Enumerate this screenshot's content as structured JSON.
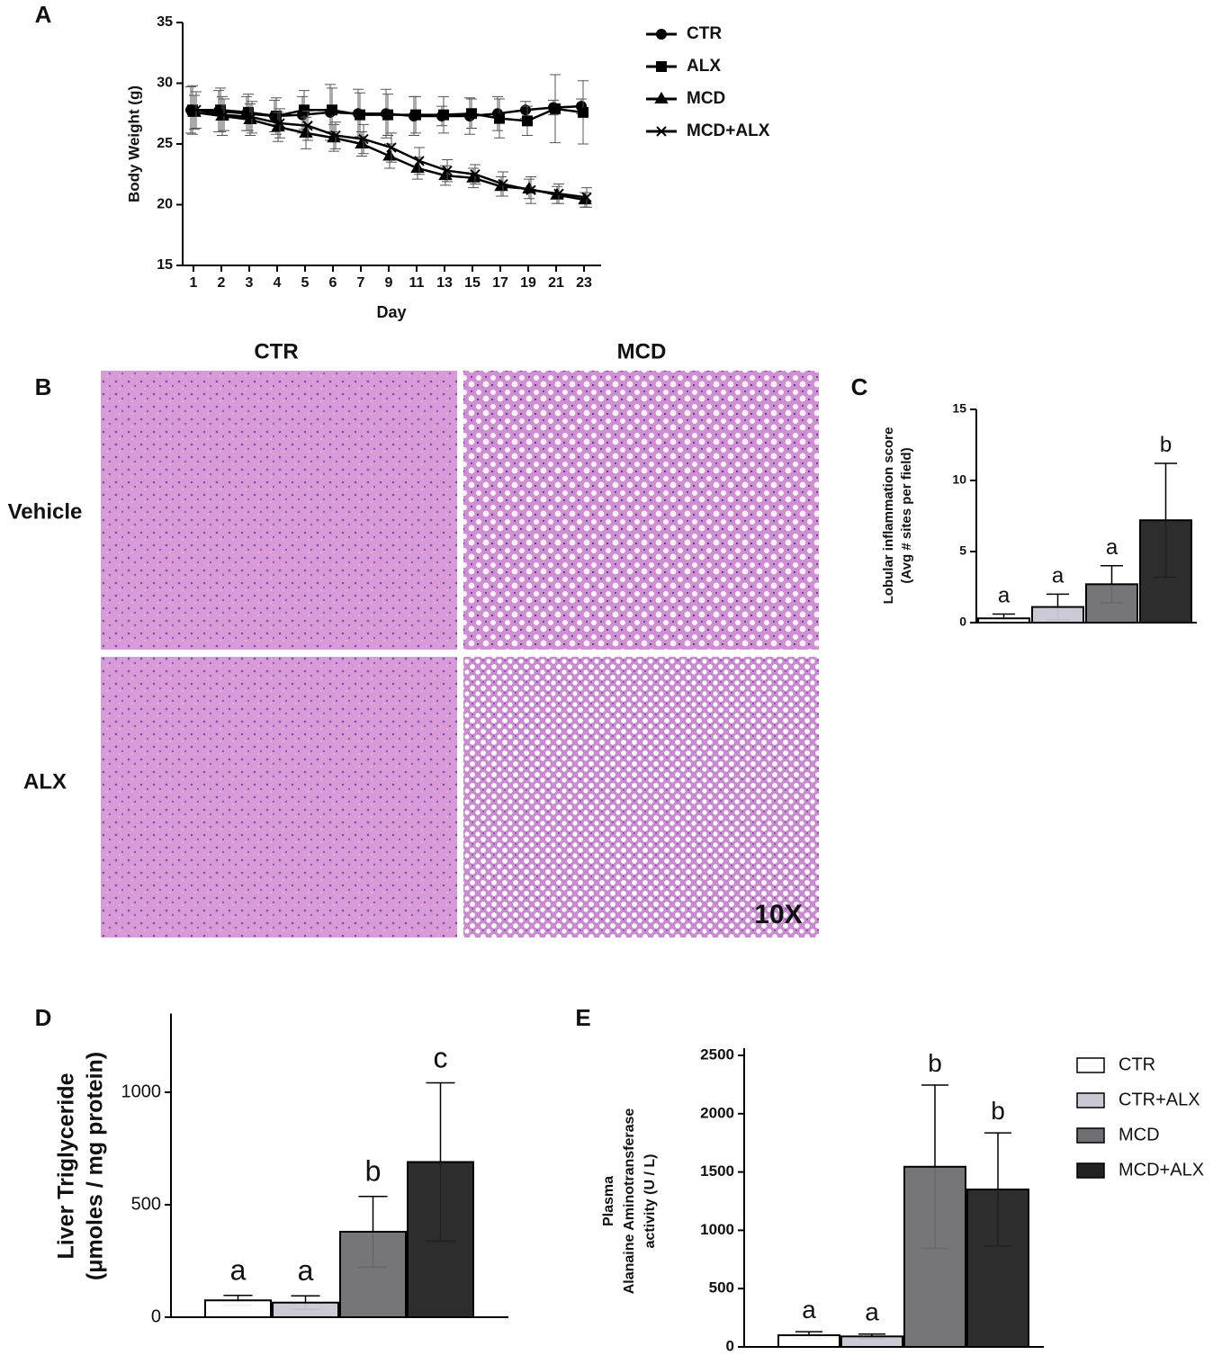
{
  "chart_data": [
    {
      "type": "line",
      "panel": "A",
      "xlabel": "Day",
      "ylabel": [
        "Body Weight (g)"
      ],
      "categories": [
        "1",
        "2",
        "3",
        "4",
        "5",
        "6",
        "7",
        "9",
        "11",
        "13",
        "15",
        "17",
        "19",
        "21",
        "23"
      ],
      "ylim": [
        15,
        35
      ],
      "yticks": [
        15,
        20,
        25,
        30,
        35
      ],
      "series": [
        {
          "name": "CTR",
          "color": "#000000",
          "marker": "circle",
          "values": [
            27.8,
            27.7,
            27.5,
            27.3,
            27.4,
            27.6,
            27.5,
            27.5,
            27.3,
            27.3,
            27.3,
            27.5,
            27.8,
            28.0,
            28.1
          ],
          "errors": [
            1.9,
            1.7,
            1.4,
            1.3,
            1.5,
            2.3,
            2.0,
            2.0,
            1.6,
            0.8,
            1.5,
            1.4,
            0.7,
            0.6,
            0.6
          ]
        },
        {
          "name": "ALX",
          "color": "#000000",
          "marker": "square",
          "values": [
            27.8,
            27.8,
            27.6,
            27.3,
            27.8,
            27.8,
            27.4,
            27.4,
            27.4,
            27.4,
            27.5,
            27.1,
            26.9,
            27.9,
            27.6
          ],
          "errors": [
            2.0,
            1.8,
            1.5,
            1.5,
            1.6,
            1.8,
            1.8,
            1.7,
            1.5,
            1.5,
            1.2,
            1.6,
            1.2,
            2.8,
            2.6
          ]
        },
        {
          "name": "MCD",
          "color": "#000000",
          "marker": "triangle",
          "values": [
            27.6,
            27.3,
            27.0,
            26.4,
            25.9,
            25.5,
            25.0,
            24.0,
            23.0,
            22.4,
            22.2,
            21.5,
            21.3,
            20.8,
            20.4
          ],
          "errors": [
            1.4,
            1.6,
            1.3,
            1.2,
            1.3,
            1.1,
            1.0,
            1.0,
            0.9,
            0.8,
            0.8,
            0.8,
            0.8,
            0.7,
            0.6
          ]
        },
        {
          "name": "MCD+ALX",
          "color": "#000000",
          "marker": "x",
          "values": [
            27.8,
            27.4,
            27.2,
            26.7,
            26.5,
            25.7,
            25.4,
            24.7,
            23.6,
            22.8,
            22.5,
            21.7,
            21.2,
            20.9,
            20.6
          ],
          "errors": [
            1.5,
            1.3,
            1.3,
            1.2,
            1.2,
            1.1,
            1.2,
            1.2,
            1.1,
            0.9,
            0.8,
            1.0,
            1.1,
            0.8,
            0.8
          ]
        }
      ]
    },
    {
      "type": "bar",
      "panel": "C",
      "ylabel": [
        "Lobular inflammation score",
        "(Avg # sites per field)"
      ],
      "categories": [
        null,
        null,
        null,
        null
      ],
      "values": [
        0.3,
        1.1,
        2.7,
        7.2
      ],
      "errors": [
        0.3,
        0.9,
        1.3,
        4.0
      ],
      "annotations": [
        "a",
        "a",
        "a",
        "b"
      ],
      "colors": [
        "#ffffff",
        "#c9c8d3",
        "#6f6f73",
        "#222222"
      ],
      "ylim": [
        0,
        15
      ],
      "yticks": [
        0,
        5,
        10,
        15
      ]
    },
    {
      "type": "bar",
      "panel": "D",
      "ylabel": [
        "Liver Triglyceride",
        "(μmoles / mg protein)"
      ],
      "categories": [
        null,
        null,
        null,
        null
      ],
      "values": [
        75,
        65,
        380,
        690
      ],
      "errors": [
        22,
        30,
        157,
        352
      ],
      "annotations": [
        "a",
        "a",
        "b",
        "c"
      ],
      "colors": [
        "#ffffff",
        "#c9c8d3",
        "#6f6f73",
        "#222222"
      ],
      "ylim": [
        0,
        1350
      ],
      "yticks": [
        0,
        500,
        1000
      ]
    },
    {
      "type": "bar",
      "panel": "E",
      "ylabel": [
        "Plasma",
        "Alanaine Aminotransferase",
        "activity (U / L)"
      ],
      "categories": [
        "CTR",
        "CTR+ALX",
        "MCD",
        "MCD+ALX"
      ],
      "legend": true,
      "values": [
        100,
        90,
        1545,
        1350
      ],
      "errors": [
        30,
        20,
        700,
        485
      ],
      "annotations": [
        "a",
        "a",
        "b",
        "b"
      ],
      "colors": [
        "#ffffff",
        "#c9c8d3",
        "#6f6f73",
        "#222222"
      ],
      "ylim": [
        0,
        2500
      ],
      "yticks": [
        0,
        500,
        1000,
        1500,
        2000,
        2500
      ]
    }
  ],
  "histology": {
    "panel": "B",
    "columns": [
      "CTR",
      "MCD"
    ],
    "rows": [
      "Vehicle",
      "ALX"
    ],
    "magnification": "10X"
  }
}
